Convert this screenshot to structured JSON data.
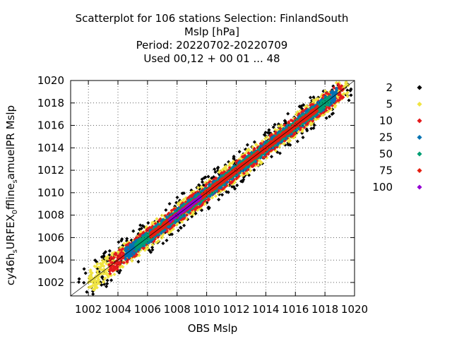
{
  "chart_data": {
    "type": "scatter",
    "title_lines": [
      "Scatterplot for  106 stations Selection: FinlandSouth",
      "Mslp [hPa]",
      "Period: 20220702-20220709",
      "Used  00,12 + 00 01 ... 48"
    ],
    "xlabel": "OBS Mslp",
    "ylabel_parts": [
      "cy46h",
      "s",
      "URFEX",
      "0",
      "ffline",
      "s",
      "amuelPR Mslp"
    ],
    "xlim": [
      1000.8,
      1020
    ],
    "ylim": [
      1000.8,
      1020
    ],
    "xticks": [
      1002,
      1004,
      1006,
      1008,
      1010,
      1012,
      1014,
      1016,
      1018,
      1020
    ],
    "yticks": [
      1002,
      1004,
      1006,
      1008,
      1010,
      1012,
      1014,
      1016,
      1018,
      1020
    ],
    "diagonal": true,
    "legend_position": "right",
    "legend": [
      {
        "label": "2",
        "color": "#000000"
      },
      {
        "label": "5",
        "color": "#f0e442"
      },
      {
        "label": "10",
        "color": "#e41a1c"
      },
      {
        "label": "25",
        "color": "#0072b2"
      },
      {
        "label": "50",
        "color": "#009e73"
      },
      {
        "label": "75",
        "color": "#e51e10"
      },
      {
        "label": "100",
        "color": "#9400d3"
      }
    ],
    "density_bands": [
      {
        "count": "2",
        "offset": [
          -1.6,
          1.6
        ],
        "x": [
          1001.3,
          1019.8
        ]
      },
      {
        "count": "5",
        "offset": [
          -1.05,
          1.05
        ],
        "x": [
          1002.0,
          1019.6
        ]
      },
      {
        "count": "10",
        "offset": [
          -0.8,
          0.8
        ],
        "x": [
          1003.4,
          1019.3
        ]
      },
      {
        "count": "25",
        "offset": [
          -0.55,
          0.55
        ],
        "x": [
          1004.5,
          1018.8
        ]
      },
      {
        "count": "50",
        "offset": [
          -0.38,
          0.38
        ],
        "x": [
          1005.2,
          1018.3
        ]
      },
      {
        "count": "75",
        "offset": [
          -0.22,
          0.22
        ],
        "x": [
          1006.2,
          1017.5
        ]
      },
      {
        "count": "100",
        "offset": [
          -0.12,
          0.12
        ],
        "x": [
          1007.5,
          1009.6
        ]
      }
    ]
  }
}
